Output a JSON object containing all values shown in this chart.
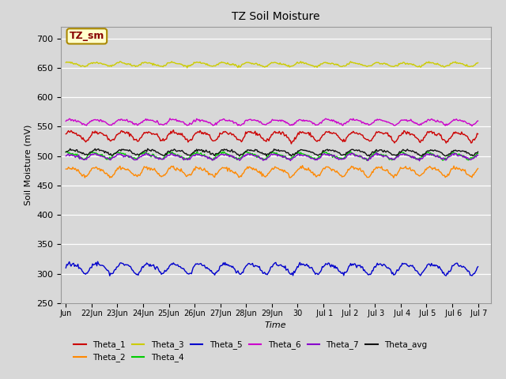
{
  "title": "TZ Soil Moisture",
  "ylabel": "Soil Moisture (mV)",
  "xlabel": "Time",
  "ylim": [
    250,
    720
  ],
  "yticks": [
    250,
    300,
    350,
    400,
    450,
    500,
    550,
    600,
    650,
    700
  ],
  "background_color": "#d8d8d8",
  "plot_bg_color": "#d8d8d8",
  "series": [
    {
      "name": "Theta_1",
      "color": "#cc0000",
      "base": 535,
      "amplitude": 7,
      "trend": -0.002,
      "phase": 0.0,
      "noise": 1.5
    },
    {
      "name": "Theta_2",
      "color": "#ff8800",
      "base": 474,
      "amplitude": 7,
      "trend": 0.0,
      "phase": 0.3,
      "noise": 1.5
    },
    {
      "name": "Theta_3",
      "color": "#cccc00",
      "base": 656,
      "amplitude": 3,
      "trend": -0.001,
      "phase": 0.5,
      "noise": 0.8
    },
    {
      "name": "Theta_4",
      "color": "#00cc00",
      "base": 501,
      "amplitude": 5,
      "trend": -0.002,
      "phase": 0.8,
      "noise": 1.2
    },
    {
      "name": "Theta_5",
      "color": "#0000cc",
      "base": 310,
      "amplitude": 8,
      "trend": -0.002,
      "phase": 0.1,
      "noise": 1.5
    },
    {
      "name": "Theta_6",
      "color": "#cc00cc",
      "base": 558,
      "amplitude": 4,
      "trend": 0.0,
      "phase": 0.2,
      "noise": 1.0
    },
    {
      "name": "Theta_7",
      "color": "#8800cc",
      "base": 499,
      "amplitude": 4,
      "trend": 0.0,
      "phase": 0.6,
      "noise": 1.0
    },
    {
      "name": "Theta_avg",
      "color": "#111111",
      "base": 507,
      "amplitude": 4,
      "trend": -0.001,
      "phase": 0.0,
      "noise": 1.0
    }
  ],
  "n_points": 480,
  "xtick_labels": [
    "Jun 22",
    "Jun 23",
    "Jun 24",
    "Jun 25",
    "Jun 26",
    "Jun 27",
    "Jun 28",
    "Jun 29",
    "Jun 30",
    "Jul 1",
    "Jul 2",
    "Jul 3",
    "Jul 4",
    "Jul 5",
    "Jul 6",
    "Jul 7"
  ],
  "label_box_text": "TZ_sm",
  "label_box_facecolor": "#ffffcc",
  "label_box_edgecolor": "#aa8800",
  "label_box_textcolor": "#880000"
}
